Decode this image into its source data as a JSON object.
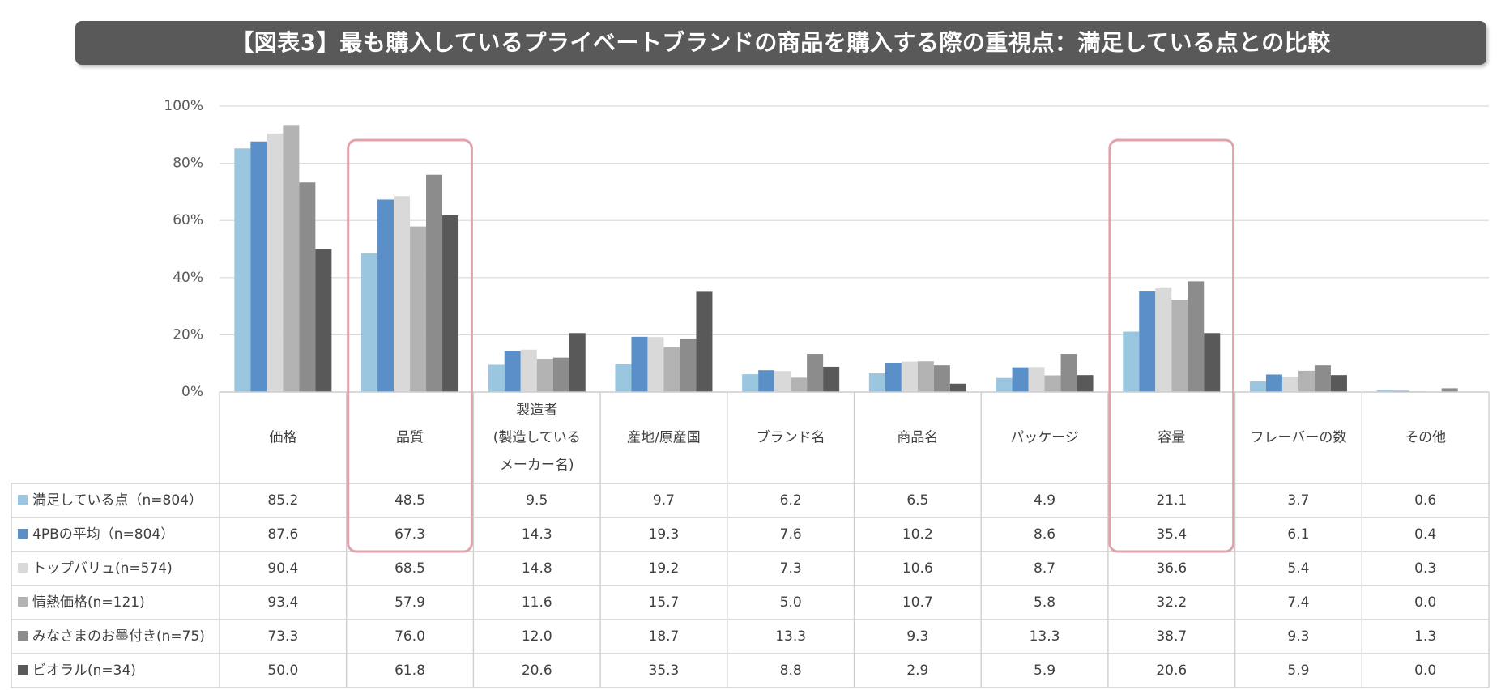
{
  "title": "【図表3】最も購入しているプライベートブランドの商品を購入する際の重視点：満足している点との比較",
  "colors": {
    "series": [
      "#9ac6e0",
      "#5b8fc8",
      "#d9d9d9",
      "#b3b3b3",
      "#8c8c8c",
      "#595959"
    ],
    "highlight": "#e0a3ab",
    "grid": "#d9d9d9",
    "title_bg": "#595959"
  },
  "chart_data": {
    "type": "bar",
    "categories": [
      [
        "価格"
      ],
      [
        "品質"
      ],
      [
        "製造者",
        "(製造している",
        "メーカー名)"
      ],
      [
        "産地/原産国"
      ],
      [
        "ブランド名"
      ],
      [
        "商品名"
      ],
      [
        "パッケージ"
      ],
      [
        "容量"
      ],
      [
        "フレーバーの数"
      ],
      [
        "その他"
      ]
    ],
    "highlighted_categories": [
      "品質",
      "容量"
    ],
    "y_ticks": [
      "0%",
      "20%",
      "40%",
      "60%",
      "80%",
      "100%"
    ],
    "ylim": [
      0,
      100
    ],
    "grid": true,
    "legend": "table-left",
    "series": [
      {
        "name": "満足している点（n=804）",
        "values": [
          85.2,
          48.5,
          9.5,
          9.7,
          6.2,
          6.5,
          4.9,
          21.1,
          3.7,
          0.6
        ]
      },
      {
        "name": "4PBの平均（n=804）",
        "values": [
          87.6,
          67.3,
          14.3,
          19.3,
          7.6,
          10.2,
          8.6,
          35.4,
          6.1,
          0.4
        ]
      },
      {
        "name": "トップバリュ(n=574)",
        "values": [
          90.4,
          68.5,
          14.8,
          19.2,
          7.3,
          10.6,
          8.7,
          36.6,
          5.4,
          0.3
        ]
      },
      {
        "name": "情熱価格(n=121)",
        "values": [
          93.4,
          57.9,
          11.6,
          15.7,
          5.0,
          10.7,
          5.8,
          32.2,
          7.4,
          0.0
        ]
      },
      {
        "name": "みなさまのお墨付き(n=75)",
        "values": [
          73.3,
          76.0,
          12.0,
          18.7,
          13.3,
          9.3,
          13.3,
          38.7,
          9.3,
          1.3
        ]
      },
      {
        "name": "ビオラル(n=34)",
        "values": [
          50.0,
          61.8,
          20.6,
          35.3,
          8.8,
          2.9,
          5.9,
          20.6,
          5.9,
          0.0
        ]
      }
    ]
  }
}
